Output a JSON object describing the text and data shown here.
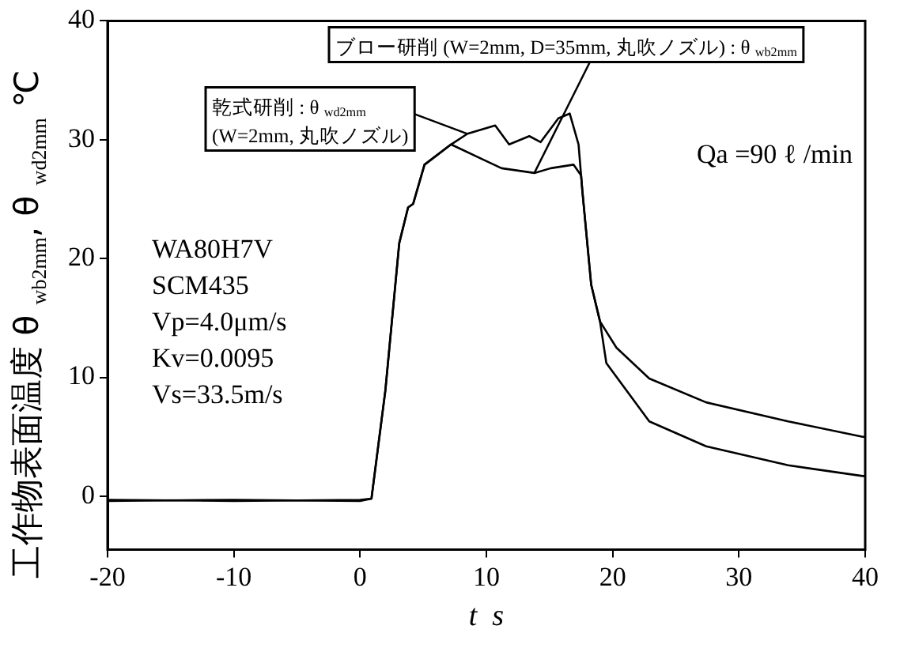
{
  "chart_data": {
    "type": "line",
    "xlabel": "t  s",
    "ylabel": "工作物表面温度  θ $_{wb2mm}$, θ $_{wd2mm}$  ℃",
    "xlim": [
      -20,
      40
    ],
    "xticks": [
      -20,
      -10,
      0,
      10,
      20,
      30,
      40
    ],
    "ylim": [
      -4.5,
      40
    ],
    "yticks": [
      0,
      10,
      20,
      30,
      40
    ],
    "grid": false,
    "marker": "none",
    "line_style": "solid",
    "annotations": [
      "WA80H7V",
      "SCM435",
      "Vp=4.0μm/s",
      "Kv=0.0095",
      "Vs=33.5m/s",
      "Qa =90 ℓ /min"
    ],
    "series": [
      {
        "name": "ブロー研削 (W=2mm, D=35mm, 丸吹ノズル) : θ $_{wb2mm}$",
        "color": "#000000",
        "x": [
          -20,
          -10,
          0,
          0.9,
          2.0,
          3.1,
          3.8,
          4.2,
          5.1,
          7.2,
          9.8,
          11.2,
          13.8,
          15.1,
          16.9,
          17.5,
          17.6,
          18.3,
          19.0,
          19.5,
          22.9,
          27.4,
          33.9,
          39.8,
          40
        ],
        "values": [
          -0.3,
          -0.4,
          -0.3,
          -0.2,
          8.9,
          21.3,
          24.3,
          24.6,
          27.9,
          29.6,
          28.3,
          27.6,
          27.2,
          27.6,
          27.9,
          27.0,
          25.7,
          17.8,
          14.7,
          11.2,
          6.3,
          4.2,
          2.6,
          1.7,
          1.7
        ]
      },
      {
        "name": "乾式研削 : θ $_{wd2mm}$\n(W=2mm, 丸吹ノズル)",
        "color": "#000000",
        "x": [
          -20,
          -10,
          0,
          0.9,
          2.0,
          3.1,
          3.8,
          4.2,
          5.1,
          7.2,
          8.5,
          10.7,
          11.8,
          13.4,
          14.3,
          15.7,
          16.6,
          17.3,
          17.6,
          18.3,
          19.0,
          20.3,
          22.9,
          27.4,
          33.9,
          39.8,
          40
        ],
        "values": [
          -0.4,
          -0.3,
          -0.4,
          -0.2,
          8.9,
          21.3,
          24.3,
          24.6,
          27.9,
          29.6,
          30.5,
          31.2,
          29.6,
          30.3,
          29.8,
          31.8,
          32.2,
          29.6,
          25.7,
          17.8,
          14.7,
          12.5,
          9.9,
          7.9,
          6.3,
          5.0,
          5.0
        ]
      }
    ]
  }
}
